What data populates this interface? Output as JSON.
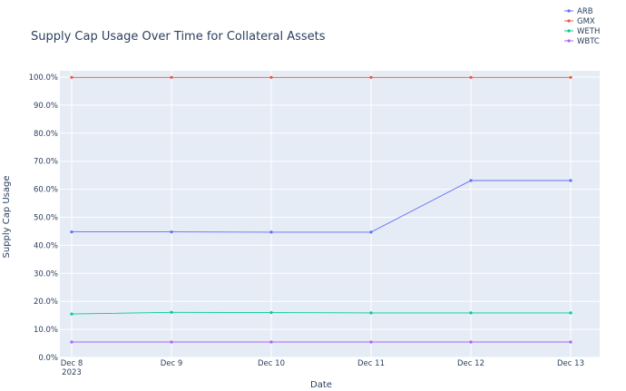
{
  "chart_data": {
    "type": "line",
    "title": "Supply Cap Usage Over Time for Collateral Assets",
    "xlabel": "Date",
    "ylabel": "Supply Cap Usage",
    "x": [
      "2023-12-08",
      "2023-12-09",
      "2023-12-10",
      "2023-12-11",
      "2023-12-12",
      "2023-12-13"
    ],
    "x_tick_labels": [
      "Dec 8",
      "Dec 9",
      "Dec 10",
      "Dec 11",
      "Dec 12",
      "Dec 13"
    ],
    "x_tick_sublabel": "2023",
    "ylim": [
      0,
      1
    ],
    "y_ticks": [
      0,
      0.1,
      0.2,
      0.3,
      0.4,
      0.5,
      0.6,
      0.7,
      0.8,
      0.9,
      1.0
    ],
    "y_tick_labels": [
      "0.0%",
      "10.0%",
      "20.0%",
      "30.0%",
      "40.0%",
      "50.0%",
      "60.0%",
      "70.0%",
      "80.0%",
      "90.0%",
      "100.0%"
    ],
    "grid": true,
    "legend_position": "top-right",
    "series": [
      {
        "name": "ARB",
        "color": "#636efa",
        "values": [
          0.448,
          0.448,
          0.447,
          0.447,
          0.631,
          0.631
        ]
      },
      {
        "name": "GMX",
        "color": "#ef553b",
        "values": [
          0.999,
          0.999,
          0.999,
          0.999,
          0.999,
          0.999
        ]
      },
      {
        "name": "WETH",
        "color": "#00cc96",
        "values": [
          0.155,
          0.161,
          0.16,
          0.159,
          0.159,
          0.159
        ]
      },
      {
        "name": "WBTC",
        "color": "#ab63fa",
        "values": [
          0.055,
          0.055,
          0.055,
          0.055,
          0.055,
          0.055
        ]
      }
    ]
  }
}
